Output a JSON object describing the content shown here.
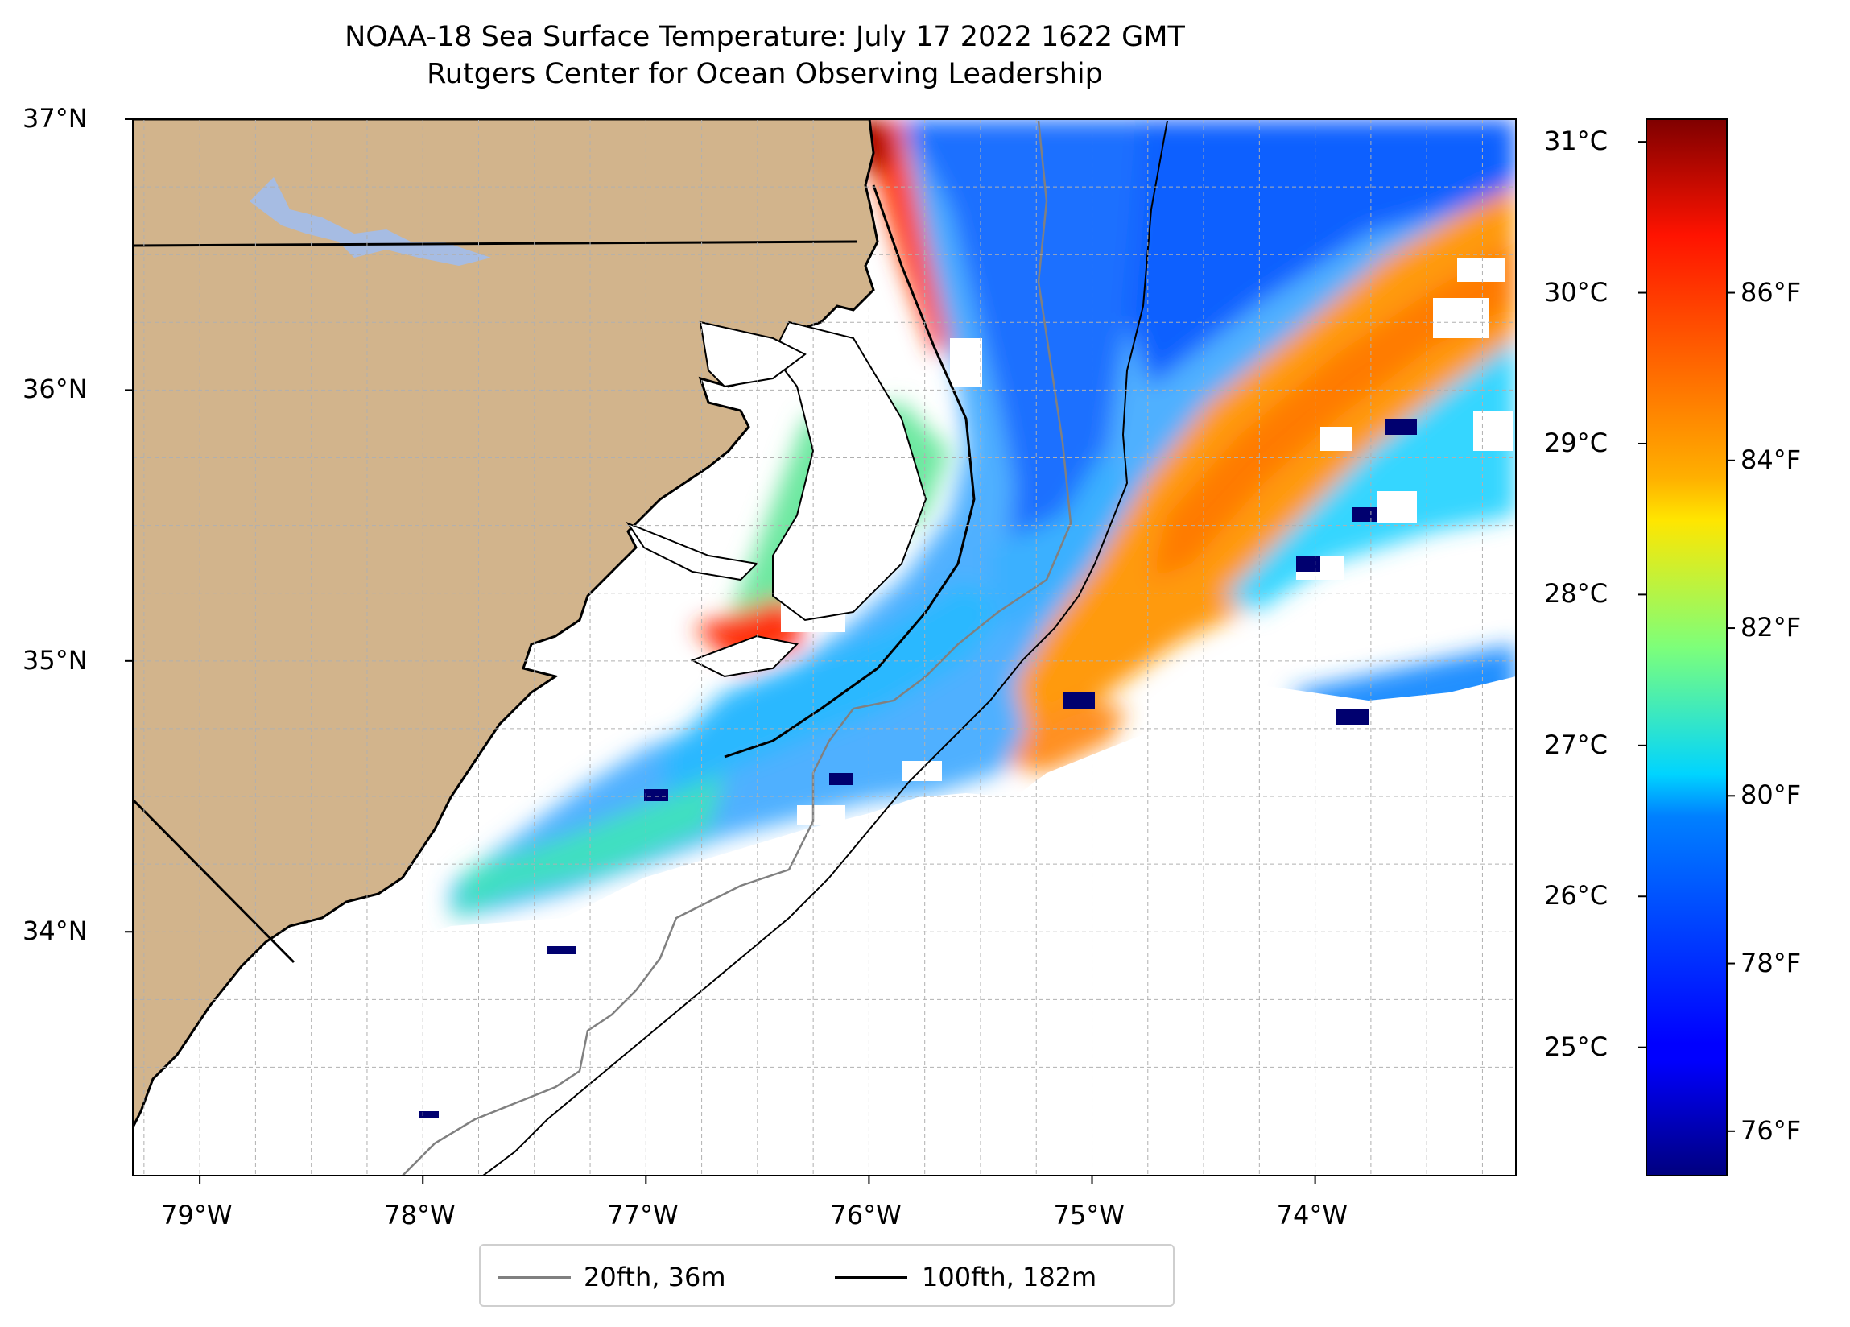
{
  "title": "NOAA-18 Sea Surface Temperature: July 17 2022 1622 GMT",
  "subtitle": "Rutgers Center for Ocean Observing Leadership",
  "map": {
    "lon_range": [
      -79.3,
      -73.1
    ],
    "lat_range": [
      33.1,
      37.0
    ],
    "lat_ticks": [
      {
        "value": 37,
        "label": "37°N"
      },
      {
        "value": 36,
        "label": "36°N"
      },
      {
        "value": 35,
        "label": "35°N"
      },
      {
        "value": 34,
        "label": "34°N"
      }
    ],
    "lon_ticks": [
      {
        "value": -79,
        "label": "79°W"
      },
      {
        "value": -78,
        "label": "78°W"
      },
      {
        "value": -77,
        "label": "77°W"
      },
      {
        "value": -76,
        "label": "76°W"
      },
      {
        "value": -75,
        "label": "75°W"
      },
      {
        "value": -74,
        "label": "74°W"
      }
    ],
    "colors": {
      "land": "#d2b48c",
      "lakes": "#a6bce3",
      "coast": "#000000",
      "isobath_20fth": "#808080",
      "isobath_100fth": "#000000",
      "grid": "#b0b0b0"
    }
  },
  "colorbar": {
    "colormap": "jet",
    "celsius_ticks": [
      {
        "value": 31,
        "label": "31°C"
      },
      {
        "value": 30,
        "label": "30°C"
      },
      {
        "value": 29,
        "label": "29°C"
      },
      {
        "value": 28,
        "label": "28°C"
      },
      {
        "value": 27,
        "label": "27°C"
      },
      {
        "value": 26,
        "label": "26°C"
      },
      {
        "value": 25,
        "label": "25°C"
      }
    ],
    "fahrenheit_ticks": [
      {
        "value": 86,
        "label": "86°F"
      },
      {
        "value": 84,
        "label": "84°F"
      },
      {
        "value": 82,
        "label": "82°F"
      },
      {
        "value": 80,
        "label": "80°F"
      },
      {
        "value": 78,
        "label": "78°F"
      },
      {
        "value": 76,
        "label": "76°F"
      }
    ]
  },
  "legend": {
    "items": [
      {
        "label": "20fth, 36m",
        "color": "#808080"
      },
      {
        "label": "100fth, 182m",
        "color": "#000000"
      }
    ]
  }
}
